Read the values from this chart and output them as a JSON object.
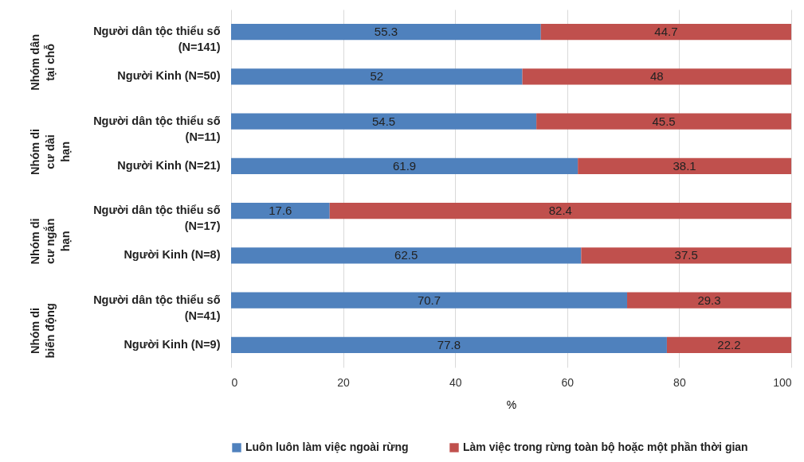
{
  "chart_data": {
    "type": "bar",
    "orientation": "horizontal",
    "stacked": true,
    "xlabel": "%",
    "categories": [
      "Người dân tộc thiểu số (N=141)",
      "Người Kinh (N=50)",
      "Người dân tộc thiểu số (N=11)",
      "Người Kinh (N=21)",
      "Người dân tộc thiểu số (N=17)",
      "Người Kinh (N=8)",
      "Người dân tộc thiểu số (N=41)",
      "Người Kinh (N=9)"
    ],
    "series": [
      {
        "name": "Luôn luôn làm việc ngoài rừng",
        "color": "#4f81bd",
        "values": [
          55.3,
          52,
          54.5,
          61.9,
          17.6,
          62.5,
          70.7,
          77.8
        ]
      },
      {
        "name": "Làm việc trong rừng toàn bộ hoặc một phần thời gian",
        "color": "#c0504d",
        "values": [
          44.7,
          48,
          45.5,
          38.1,
          82.4,
          37.5,
          29.3,
          22.2
        ]
      }
    ],
    "annotations": [
      "Nhóm dân tại chỗ",
      "Nhóm di cư dài hạn",
      "Nhóm di cư ngắn hạn",
      "Nhóm di biến động"
    ],
    "xlim": [
      0,
      100
    ],
    "xticks": [
      0,
      20,
      40,
      60,
      80,
      100
    ],
    "grid": "x",
    "legend": "bottom",
    "data_labels": true
  }
}
